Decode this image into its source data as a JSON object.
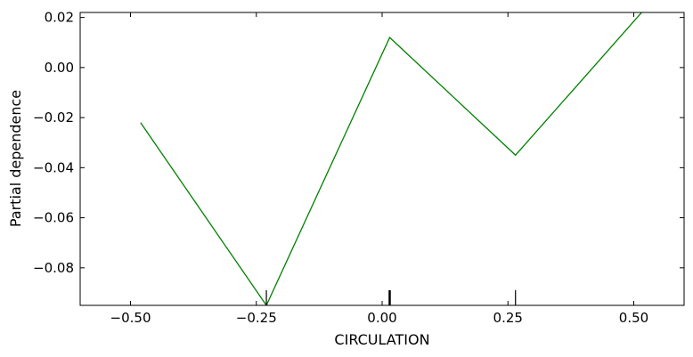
{
  "chart_data": {
    "type": "line",
    "xlabel": "CIRCULATION",
    "ylabel": "Partial dependence",
    "xlim": [
      -0.6,
      0.6
    ],
    "ylim": [
      -0.095,
      0.022
    ],
    "x_ticks": [
      -0.5,
      -0.25,
      0.0,
      0.25,
      0.5
    ],
    "x_tick_labels": [
      "−0.50",
      "−0.25",
      "0.00",
      "0.25",
      "0.50"
    ],
    "y_ticks": [
      0.02,
      0.0,
      -0.02,
      -0.04,
      -0.06,
      -0.08
    ],
    "y_tick_labels": [
      "0.02",
      "0.00",
      "−0.02",
      "−0.04",
      "−0.06",
      "−0.08"
    ],
    "grid": false,
    "series": [
      {
        "color": "#008000",
        "x": [
          -0.48,
          -0.23,
          0.015,
          0.265,
          0.52
        ],
        "y": [
          -0.022,
          -0.095,
          0.012,
          -0.035,
          0.023
        ]
      }
    ],
    "rug": {
      "color": "#000000",
      "x": [
        -0.23,
        0.015,
        0.265
      ],
      "weights": [
        1,
        2,
        1
      ]
    }
  }
}
